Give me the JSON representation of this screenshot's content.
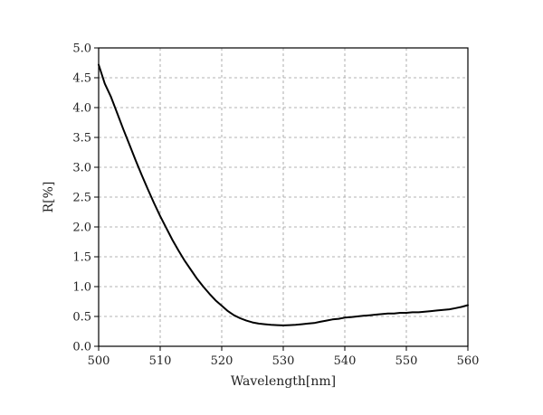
{
  "chart_data": {
    "type": "line",
    "title": "",
    "xlabel": "Wavelength[nm]",
    "ylabel": "R[%]",
    "xlim": [
      500,
      560
    ],
    "ylim": [
      0.0,
      5.0
    ],
    "x_ticks": [
      "500",
      "510",
      "520",
      "530",
      "540",
      "550",
      "560"
    ],
    "y_ticks": [
      "0.0",
      "0.5",
      "1.0",
      "1.5",
      "2.0",
      "2.5",
      "3.0",
      "3.5",
      "4.0",
      "4.5",
      "5.0"
    ],
    "grid": true,
    "series": [
      {
        "color": "#000000",
        "x": [
          500,
          501,
          502,
          503,
          504,
          505,
          506,
          507,
          508,
          509,
          510,
          511,
          512,
          513,
          514,
          515,
          516,
          517,
          518,
          519,
          520,
          521,
          522,
          523,
          524,
          525,
          526,
          527,
          528,
          529,
          530,
          531,
          532,
          533,
          534,
          535,
          536,
          537,
          538,
          539,
          540,
          541,
          542,
          543,
          544,
          545,
          546,
          547,
          548,
          549,
          550,
          551,
          552,
          553,
          554,
          555,
          556,
          557,
          558,
          559,
          560
        ],
        "y": [
          4.72,
          4.4,
          4.18,
          3.91,
          3.64,
          3.38,
          3.12,
          2.87,
          2.63,
          2.4,
          2.18,
          1.98,
          1.78,
          1.6,
          1.43,
          1.28,
          1.13,
          1.0,
          0.88,
          0.77,
          0.68,
          0.59,
          0.52,
          0.47,
          0.43,
          0.4,
          0.38,
          0.37,
          0.36,
          0.355,
          0.35,
          0.355,
          0.36,
          0.37,
          0.38,
          0.39,
          0.41,
          0.43,
          0.45,
          0.46,
          0.48,
          0.49,
          0.5,
          0.51,
          0.52,
          0.53,
          0.54,
          0.55,
          0.55,
          0.56,
          0.56,
          0.57,
          0.57,
          0.58,
          0.59,
          0.6,
          0.61,
          0.62,
          0.64,
          0.66,
          0.69
        ]
      }
    ]
  }
}
